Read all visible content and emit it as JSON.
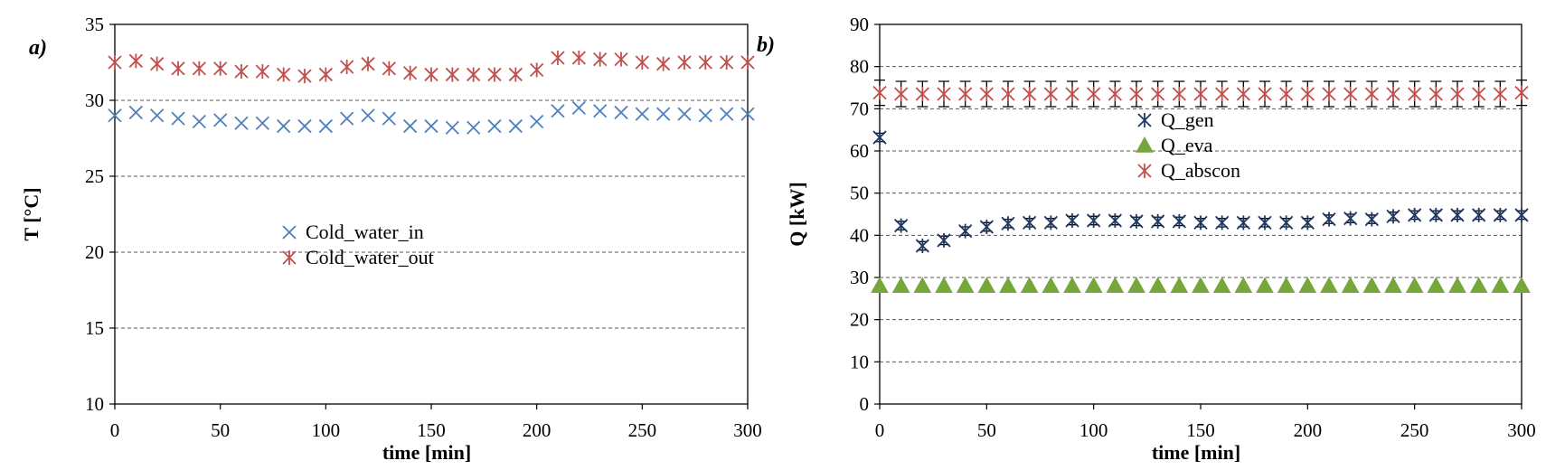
{
  "chart_data": [
    {
      "type": "scatter",
      "panel_label": "a)",
      "xlabel": "time [min]",
      "ylabel": "T [°C]",
      "xlim": [
        0,
        300
      ],
      "ylim": [
        10,
        35
      ],
      "xticks": [
        0,
        50,
        100,
        150,
        200,
        250,
        300
      ],
      "yticks": [
        10,
        15,
        20,
        25,
        30,
        35
      ],
      "xtick_labels": [
        "0",
        "50",
        "100",
        "150",
        "200",
        "250",
        "300"
      ],
      "ytick_labels": [
        "10",
        "15",
        "20",
        "25",
        "30",
        "35"
      ],
      "grid": "horizontal dashed",
      "legend_position": "center-left",
      "series": [
        {
          "name": "Cold_water_in",
          "marker": "x",
          "color": "#4F81BD",
          "x": [
            0,
            10,
            20,
            30,
            40,
            50,
            60,
            70,
            80,
            90,
            100,
            110,
            120,
            130,
            140,
            150,
            160,
            170,
            180,
            190,
            200,
            210,
            220,
            230,
            240,
            250,
            260,
            270,
            280,
            290,
            300
          ],
          "y": [
            29.0,
            29.2,
            29.0,
            28.8,
            28.6,
            28.7,
            28.5,
            28.5,
            28.3,
            28.3,
            28.3,
            28.8,
            29.0,
            28.8,
            28.3,
            28.3,
            28.2,
            28.2,
            28.3,
            28.3,
            28.6,
            29.3,
            29.5,
            29.3,
            29.2,
            29.1,
            29.1,
            29.1,
            29.0,
            29.1,
            29.1
          ]
        },
        {
          "name": "Cold_water_out",
          "marker": "star",
          "color": "#C0504D",
          "x": [
            0,
            10,
            20,
            30,
            40,
            50,
            60,
            70,
            80,
            90,
            100,
            110,
            120,
            130,
            140,
            150,
            160,
            170,
            180,
            190,
            200,
            210,
            220,
            230,
            240,
            250,
            260,
            270,
            280,
            290,
            300
          ],
          "y": [
            32.5,
            32.6,
            32.4,
            32.1,
            32.1,
            32.1,
            31.9,
            31.9,
            31.7,
            31.6,
            31.7,
            32.2,
            32.4,
            32.1,
            31.8,
            31.7,
            31.7,
            31.7,
            31.7,
            31.7,
            32.0,
            32.8,
            32.8,
            32.7,
            32.7,
            32.5,
            32.4,
            32.5,
            32.5,
            32.5,
            32.5
          ]
        }
      ]
    },
    {
      "type": "scatter",
      "panel_label": "b)",
      "xlabel": "time [min]",
      "ylabel": "Q [kW]",
      "xlim": [
        0,
        300
      ],
      "ylim": [
        0,
        90
      ],
      "xticks": [
        0,
        50,
        100,
        150,
        200,
        250,
        300
      ],
      "yticks": [
        0,
        10,
        20,
        30,
        40,
        50,
        60,
        70,
        80,
        90
      ],
      "xtick_labels": [
        "0",
        "50",
        "100",
        "150",
        "200",
        "250",
        "300"
      ],
      "ytick_labels": [
        "0",
        "10",
        "20",
        "30",
        "40",
        "50",
        "60",
        "70",
        "80",
        "90"
      ],
      "grid": "horizontal dashed",
      "legend_position": "upper-center",
      "series": [
        {
          "name": "Q_gen",
          "marker": "star",
          "color": "#1F3864",
          "error": 1.0,
          "x": [
            0,
            10,
            20,
            30,
            40,
            50,
            60,
            70,
            80,
            90,
            100,
            110,
            120,
            130,
            140,
            150,
            160,
            170,
            180,
            190,
            200,
            210,
            220,
            230,
            240,
            250,
            260,
            270,
            280,
            290,
            300
          ],
          "y": [
            63.2,
            42.3,
            37.5,
            38.8,
            41.0,
            42.0,
            42.8,
            43.0,
            43.0,
            43.5,
            43.5,
            43.5,
            43.3,
            43.3,
            43.3,
            43.0,
            43.0,
            43.0,
            43.0,
            43.0,
            43.0,
            43.8,
            44.0,
            43.8,
            44.5,
            44.8,
            44.8,
            44.8,
            44.8,
            44.8,
            44.8
          ]
        },
        {
          "name": "Q_eva",
          "marker": "triangle",
          "color": "#77A63B",
          "x": [
            0,
            10,
            20,
            30,
            40,
            50,
            60,
            70,
            80,
            90,
            100,
            110,
            120,
            130,
            140,
            150,
            160,
            170,
            180,
            190,
            200,
            210,
            220,
            230,
            240,
            250,
            260,
            270,
            280,
            290,
            300
          ],
          "y": [
            28.0,
            28.0,
            28.0,
            28.0,
            28.0,
            28.0,
            28.0,
            28.0,
            28.0,
            28.0,
            28.0,
            28.0,
            28.0,
            28.0,
            28.0,
            28.0,
            28.0,
            28.0,
            28.0,
            28.0,
            28.0,
            28.0,
            28.0,
            28.0,
            28.0,
            28.0,
            28.0,
            28.0,
            28.0,
            28.0,
            28.0
          ]
        },
        {
          "name": "Q_abscon",
          "marker": "star",
          "color": "#C0504D",
          "error": 3.0,
          "x": [
            0,
            10,
            20,
            30,
            40,
            50,
            60,
            70,
            80,
            90,
            100,
            110,
            120,
            130,
            140,
            150,
            160,
            170,
            180,
            190,
            200,
            210,
            220,
            230,
            240,
            250,
            260,
            270,
            280,
            290,
            300
          ],
          "y": [
            73.8,
            73.5,
            73.5,
            73.5,
            73.5,
            73.5,
            73.5,
            73.5,
            73.5,
            73.5,
            73.5,
            73.5,
            73.5,
            73.5,
            73.5,
            73.5,
            73.5,
            73.5,
            73.5,
            73.5,
            73.5,
            73.5,
            73.5,
            73.5,
            73.5,
            73.5,
            73.5,
            73.5,
            73.5,
            73.5,
            73.8
          ]
        }
      ]
    }
  ]
}
